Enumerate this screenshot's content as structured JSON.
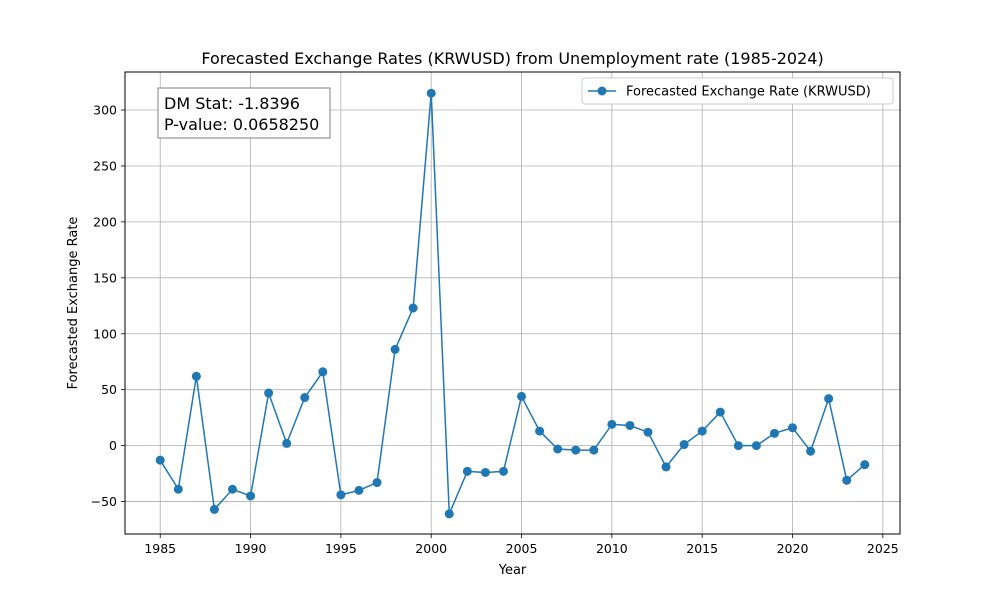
{
  "chart_data": {
    "type": "line",
    "title": "Forecasted Exchange Rates (KRWUSD) from Unemployment rate (1985-2024)",
    "xlabel": "Year",
    "ylabel": "Forecasted Exchange Rate",
    "xlim": [
      1983.05,
      2025.95
    ],
    "ylim": [
      -79,
      334
    ],
    "xticks": [
      1985,
      1990,
      1995,
      2000,
      2005,
      2010,
      2015,
      2020,
      2025
    ],
    "yticks": [
      -50,
      0,
      50,
      100,
      150,
      200,
      250,
      300
    ],
    "grid": true,
    "legend_position": "top-right",
    "series": [
      {
        "name": "Forecasted Exchange Rate (KRWUSD)",
        "color": "#1f77b4",
        "marker": "circle",
        "x": [
          1985,
          1986,
          1987,
          1988,
          1989,
          1990,
          1991,
          1992,
          1993,
          1994,
          1995,
          1996,
          1997,
          1998,
          1999,
          2000,
          2001,
          2002,
          2003,
          2004,
          2005,
          2006,
          2007,
          2008,
          2009,
          2010,
          2011,
          2012,
          2013,
          2014,
          2015,
          2016,
          2017,
          2018,
          2019,
          2020,
          2021,
          2022,
          2023,
          2024
        ],
        "y": [
          -13,
          -39,
          62,
          -57,
          -39,
          -45,
          47,
          2,
          43,
          66,
          -44,
          -40,
          -33,
          86,
          123,
          315,
          -61,
          -23,
          -24,
          -23,
          44,
          13,
          -3,
          -4,
          -4,
          19,
          18,
          12,
          -19,
          1,
          13,
          30,
          0,
          0,
          11,
          16,
          -5,
          42,
          -31,
          -17
        ]
      }
    ],
    "annotations": [
      {
        "line1": "DM Stat: -1.8396",
        "line2": "P-value: 0.0658250"
      }
    ]
  }
}
